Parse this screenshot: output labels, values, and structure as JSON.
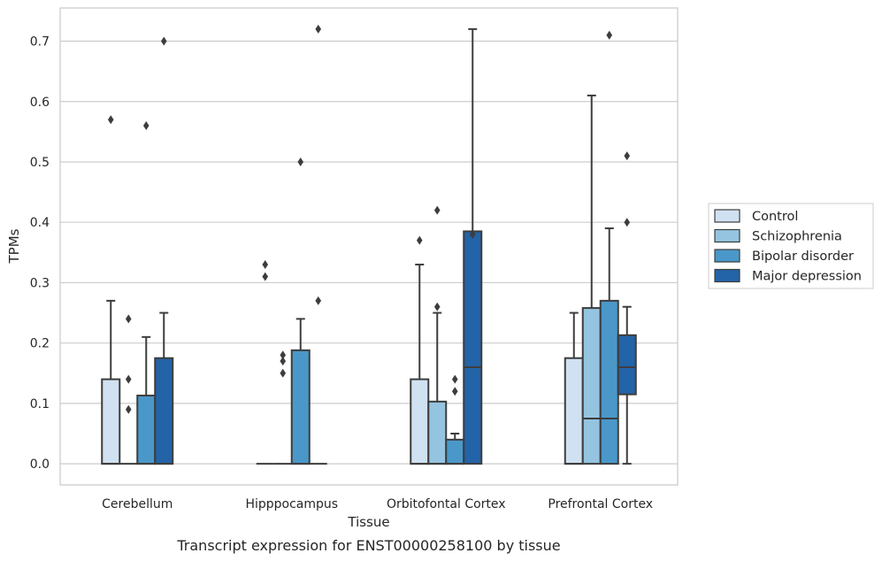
{
  "caption": "Transcript expression for ENST00000258100 by tissue",
  "chart_data": {
    "type": "boxplot",
    "xlabel": "Tissue",
    "ylabel": "TPMs",
    "ylim": [
      -0.035,
      0.755
    ],
    "yticks": [
      "0.0",
      "0.1",
      "0.2",
      "0.3",
      "0.4",
      "0.5",
      "0.6",
      "0.7"
    ],
    "grid": "horizontal",
    "legend_position": "right",
    "categories": [
      "Cerebellum",
      "Hipppocampus",
      "Orbitofontal Cortex",
      "Prefrontal Cortex"
    ],
    "series": [
      {
        "name": "Control",
        "color": "#d0e1f2",
        "boxes": [
          {
            "q1": 0,
            "median": 0,
            "q3": 0.14,
            "whisker_low": 0,
            "whisker_high": 0.27,
            "outliers": [
              0.57
            ]
          },
          {
            "q1": 0,
            "median": 0,
            "q3": 0,
            "whisker_low": 0,
            "whisker_high": 0,
            "outliers": [
              0.33,
              0.31
            ]
          },
          {
            "q1": 0,
            "median": 0,
            "q3": 0.14,
            "whisker_low": 0,
            "whisker_high": 0.33,
            "outliers": [
              0.37
            ]
          },
          {
            "q1": 0,
            "median": 0,
            "q3": 0.175,
            "whisker_low": 0,
            "whisker_high": 0.25,
            "outliers": []
          }
        ]
      },
      {
        "name": "Schizophrenia",
        "color": "#94c4df",
        "boxes": [
          {
            "q1": 0,
            "median": 0,
            "q3": 0,
            "whisker_low": 0,
            "whisker_high": 0,
            "outliers": [
              0.24,
              0.14,
              0.09
            ]
          },
          {
            "q1": 0,
            "median": 0,
            "q3": 0,
            "whisker_low": 0,
            "whisker_high": 0,
            "outliers": [
              0.18,
              0.17,
              0.15
            ]
          },
          {
            "q1": 0,
            "median": 0,
            "q3": 0.103,
            "whisker_low": 0,
            "whisker_high": 0.25,
            "outliers": [
              0.42,
              0.26
            ]
          },
          {
            "q1": 0,
            "median": 0.075,
            "q3": 0.258,
            "whisker_low": 0,
            "whisker_high": 0.61,
            "outliers": []
          }
        ]
      },
      {
        "name": "Bipolar disorder",
        "color": "#4a98c9",
        "boxes": [
          {
            "q1": 0,
            "median": 0,
            "q3": 0.113,
            "whisker_low": 0,
            "whisker_high": 0.21,
            "outliers": [
              0.56
            ]
          },
          {
            "q1": 0,
            "median": 0,
            "q3": 0.188,
            "whisker_low": 0,
            "whisker_high": 0.24,
            "outliers": [
              0.5
            ]
          },
          {
            "q1": 0,
            "median": 0,
            "q3": 0.04,
            "whisker_low": 0,
            "whisker_high": 0.05,
            "outliers": [
              0.14,
              0.12
            ]
          },
          {
            "q1": 0,
            "median": 0.075,
            "q3": 0.27,
            "whisker_low": 0,
            "whisker_high": 0.39,
            "outliers": [
              0.71
            ]
          }
        ]
      },
      {
        "name": "Major depression",
        "color": "#2363a7",
        "boxes": [
          {
            "q1": 0,
            "median": 0,
            "q3": 0.175,
            "whisker_low": 0,
            "whisker_high": 0.25,
            "outliers": [
              0.7
            ]
          },
          {
            "q1": 0,
            "median": 0,
            "q3": 0,
            "whisker_low": 0,
            "whisker_high": 0,
            "outliers": [
              0.72,
              0.27
            ]
          },
          {
            "q1": 0,
            "median": 0.16,
            "q3": 0.385,
            "whisker_low": 0,
            "whisker_high": 0.72,
            "outliers": [
              0.38
            ]
          },
          {
            "q1": 0.115,
            "median": 0.16,
            "q3": 0.213,
            "whisker_low": 0,
            "whisker_high": 0.26,
            "outliers": [
              0.51,
              0.4
            ]
          }
        ]
      }
    ]
  }
}
